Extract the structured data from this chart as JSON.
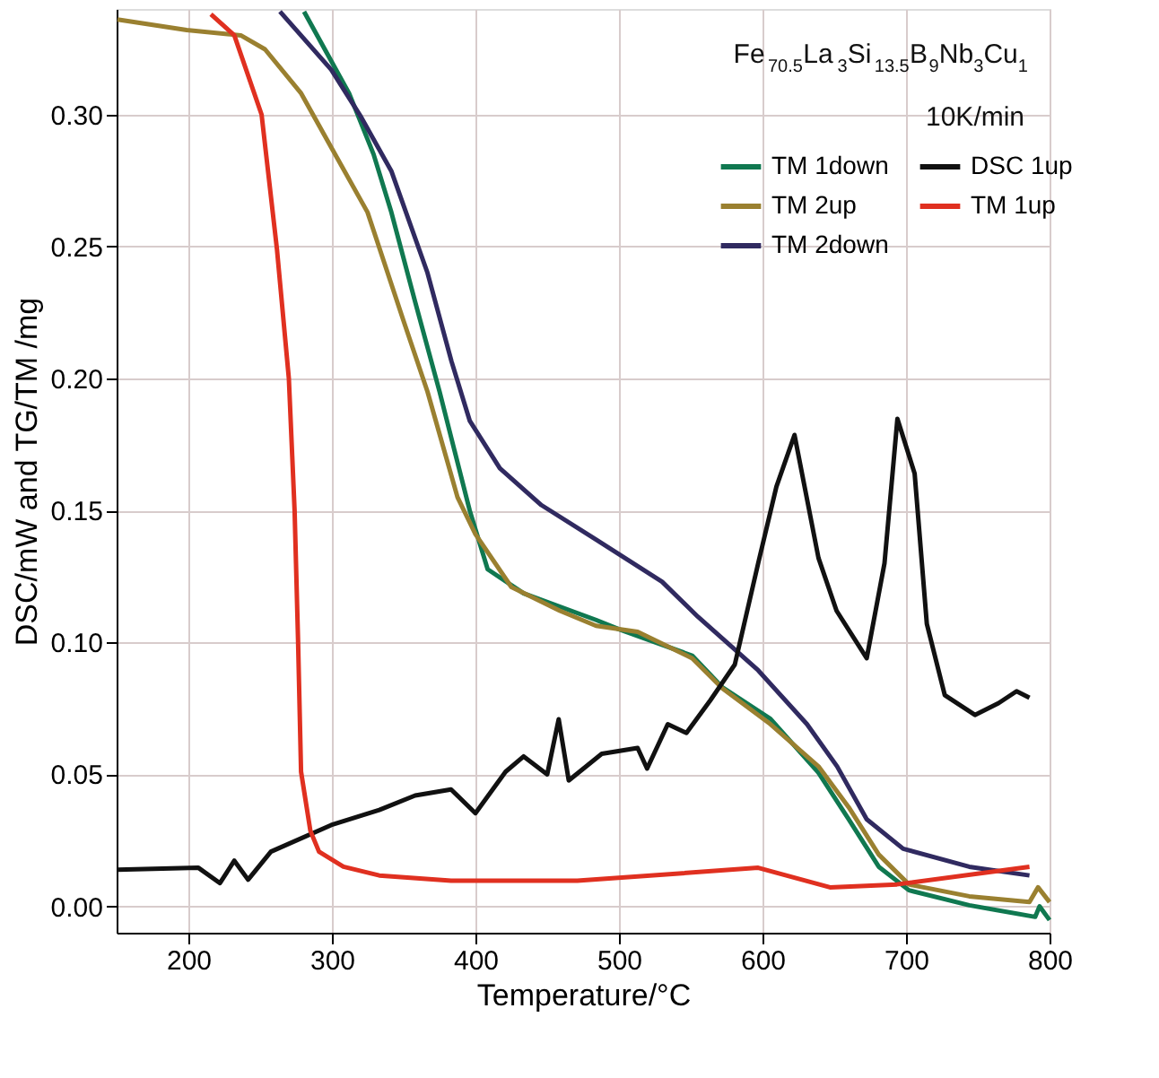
{
  "chart_data": {
    "type": "line",
    "xlabel": "Temperature/°C",
    "ylabel": "DSC/mW and TG/TM /mg",
    "xlim": [
      150,
      800
    ],
    "xticks": [
      200,
      300,
      400,
      500,
      600,
      700,
      800
    ],
    "ylim": [
      -0.01,
      0.34
    ],
    "yticks": [
      {
        "value": 0,
        "label": "0.00"
      },
      0.05,
      {
        "value": 0.1,
        "label": "0.10"
      },
      0.15,
      {
        "value": 0.2,
        "label": "0.20"
      },
      0.25,
      {
        "value": 0.3,
        "label": "0.30"
      }
    ],
    "grid": true,
    "legend": "top right",
    "line_style": "solid",
    "marker": "none",
    "annotations": [
      "Fe$_{70.5}$La$_{3}$Si$_{13.5}$B$_{9}$Nb$_{3}$Cu$_{1}$",
      "10K/min"
    ],
    "series": [
      {
        "name": "TM 1down",
        "color": "#107850",
        "x": [
          280.6,
          312,
          329,
          341.4,
          358,
          375,
          396,
          408.5,
          433.6,
          484,
          500,
          551,
          572,
          605.6,
          639,
          660,
          681,
          702,
          744,
          790,
          793,
          800
        ],
        "values": [
          0.339,
          0.308,
          0.285,
          0.263,
          0.229,
          0.195,
          0.15,
          0.1277,
          0.1186,
          0.1085,
          0.105,
          0.095,
          0.083,
          0.071,
          0.0506,
          0.033,
          0.015,
          0.0061,
          0.0004,
          -0.004,
          0.0,
          -0.0052
        ]
      },
      {
        "name": "TM 2up",
        "color": "#9a8030",
        "x": [
          150.6,
          198.8,
          236.5,
          253.4,
          278.6,
          299.5,
          324.8,
          349.8,
          366.6,
          387.5,
          400,
          425,
          458.8,
          484,
          513,
          551,
          572,
          605.6,
          639,
          660,
          681,
          702,
          744,
          786,
          792,
          800
        ],
        "values": [
          0.336,
          0.332,
          0.33,
          0.3247,
          0.308,
          0.2876,
          0.263,
          0.222,
          0.195,
          0.155,
          0.141,
          0.121,
          0.112,
          0.1063,
          0.104,
          0.094,
          0.0826,
          0.069,
          0.053,
          0.0376,
          0.0196,
          0.0083,
          0.0038,
          0.0016,
          0.0072,
          0.0016
        ]
      },
      {
        "name": "TM 2down",
        "color": "#302a60",
        "x": [
          263.8,
          299.5,
          320.4,
          341.4,
          366.6,
          383.3,
          396,
          417,
          446,
          484,
          530,
          555,
          597,
          631,
          652,
          672.6,
          698,
          744,
          786
        ],
        "values": [
          0.339,
          0.317,
          0.299,
          0.2786,
          0.24,
          0.2065,
          0.184,
          0.166,
          0.152,
          0.139,
          0.123,
          0.1097,
          0.0894,
          0.069,
          0.053,
          0.033,
          0.0218,
          0.015,
          0.0117
        ]
      },
      {
        "name": "DSC 1up",
        "color": "#111111",
        "x": [
          150.6,
          207,
          222,
          232,
          241.6,
          257.5,
          299.5,
          333,
          358,
          383,
          400,
          421,
          433.6,
          450,
          458,
          465,
          488,
          513,
          519.6,
          534,
          547,
          563.6,
          580.7,
          597,
          609.7,
          622.3,
          639,
          651.6,
          672.6,
          685,
          694,
          706,
          714.5,
          727,
          748,
          764.5,
          777,
          786
        ],
        "values": [
          0.0139,
          0.0146,
          0.0088,
          0.0173,
          0.0101,
          0.0207,
          0.0308,
          0.0365,
          0.042,
          0.0443,
          0.0353,
          0.051,
          0.0568,
          0.05,
          0.0709,
          0.0477,
          0.0578,
          0.06,
          0.0522,
          0.069,
          0.0657,
          0.078,
          0.0916,
          0.13,
          0.159,
          0.1786,
          0.132,
          0.112,
          0.094,
          0.13,
          0.1847,
          0.164,
          0.107,
          0.08,
          0.0725,
          0.077,
          0.0815,
          0.079
        ]
      },
      {
        "name": "TM 1up",
        "color": "#e03020",
        "x": [
          215.7,
          232,
          251,
          261.7,
          270,
          274,
          276.4,
          278.5,
          285,
          291,
          308,
          333,
          383,
          471,
          597,
          647,
          693.6,
          786
        ],
        "values": [
          0.338,
          0.33,
          0.3,
          0.249,
          0.2,
          0.15,
          0.101,
          0.051,
          0.0286,
          0.0207,
          0.015,
          0.0117,
          0.0097,
          0.0097,
          0.0146,
          0.0072,
          0.0083,
          0.015
        ]
      }
    ]
  }
}
